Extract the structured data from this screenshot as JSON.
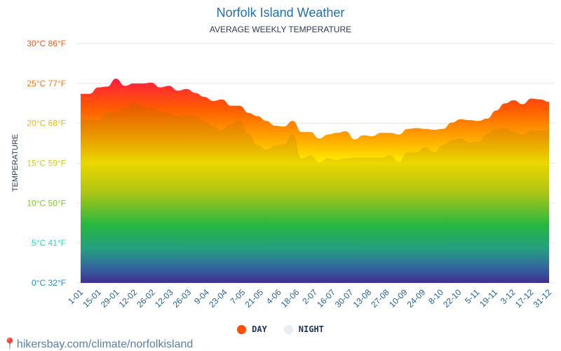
{
  "header": {
    "title": "Norfolk Island Weather",
    "subtitle": "AVERAGE WEEKLY TEMPERATURE"
  },
  "footer": {
    "text": "hikersbay.com/climate/norfolkisland",
    "icon": "map-pin-icon"
  },
  "chart_data": {
    "type": "area",
    "title": "Norfolk Island Weather",
    "subtitle": "AVERAGE WEEKLY TEMPERATURE",
    "ylabel": "TEMPERATURE",
    "ylim": [
      0,
      30
    ],
    "yticks": [
      {
        "value": 30,
        "label": "30°C 86°F",
        "color": "#ff5a1f"
      },
      {
        "value": 25,
        "label": "25°C 77°F",
        "color": "#ff7a1a"
      },
      {
        "value": 20,
        "label": "20°C 68°F",
        "color": "#e8b820"
      },
      {
        "value": 15,
        "label": "15°C 59°F",
        "color": "#c8d020"
      },
      {
        "value": 10,
        "label": "10°C 50°F",
        "color": "#7ad020"
      },
      {
        "value": 5,
        "label": "5°C 41°F",
        "color": "#20e0c0"
      },
      {
        "value": 0,
        "label": "0°C 32°F",
        "color": "#2090e0"
      }
    ],
    "xtick_labels": [
      "1-01",
      "15-01",
      "29-01",
      "12-02",
      "26-02",
      "12-03",
      "26-03",
      "9-04",
      "23-04",
      "7-05",
      "21-05",
      "4-06",
      "18-06",
      "2-07",
      "16-07",
      "30-07",
      "13-08",
      "27-08",
      "10-09",
      "24-09",
      "8-10",
      "22-10",
      "5-11",
      "19-11",
      "3-12",
      "17-12",
      "31-12"
    ],
    "grid": true,
    "legend_placement": "bottom",
    "series": [
      {
        "name": "DAY",
        "color": "#ff5000",
        "values": [
          23.7,
          23.7,
          24.5,
          24.6,
          25.6,
          24.7,
          25.0,
          25.0,
          25.1,
          24.5,
          24.7,
          24.1,
          24.3,
          23.8,
          23.3,
          22.8,
          23.0,
          22.2,
          22.2,
          21.3,
          20.9,
          20.3,
          19.7,
          19.6,
          20.3,
          18.9,
          18.9,
          18.1,
          18.6,
          18.8,
          19.0,
          18.0,
          18.5,
          18.4,
          18.8,
          18.8,
          18.6,
          19.3,
          19.4,
          19.3,
          19.2,
          19.3,
          20.1,
          20.5,
          20.4,
          20.3,
          20.6,
          21.6,
          22.5,
          22.9,
          22.4,
          23.1,
          23.0,
          22.7
        ]
      },
      {
        "name": "NIGHT",
        "color": "#e8eef4",
        "values": [
          20.5,
          20.5,
          20.4,
          21.4,
          21.5,
          22.0,
          22.7,
          22.1,
          22.0,
          21.5,
          21.3,
          20.9,
          21.1,
          20.9,
          20.3,
          19.6,
          19.2,
          19.9,
          20.3,
          18.7,
          17.3,
          16.7,
          17.2,
          17.4,
          18.6,
          15.6,
          16.0,
          15.1,
          15.6,
          15.4,
          15.6,
          15.7,
          15.7,
          15.7,
          15.7,
          16.0,
          15.2,
          16.4,
          16.4,
          17.0,
          16.4,
          17.3,
          17.9,
          18.1,
          17.6,
          17.7,
          18.7,
          19.3,
          19.4,
          18.9,
          18.6,
          19.1,
          19.1,
          19.1
        ]
      }
    ]
  }
}
